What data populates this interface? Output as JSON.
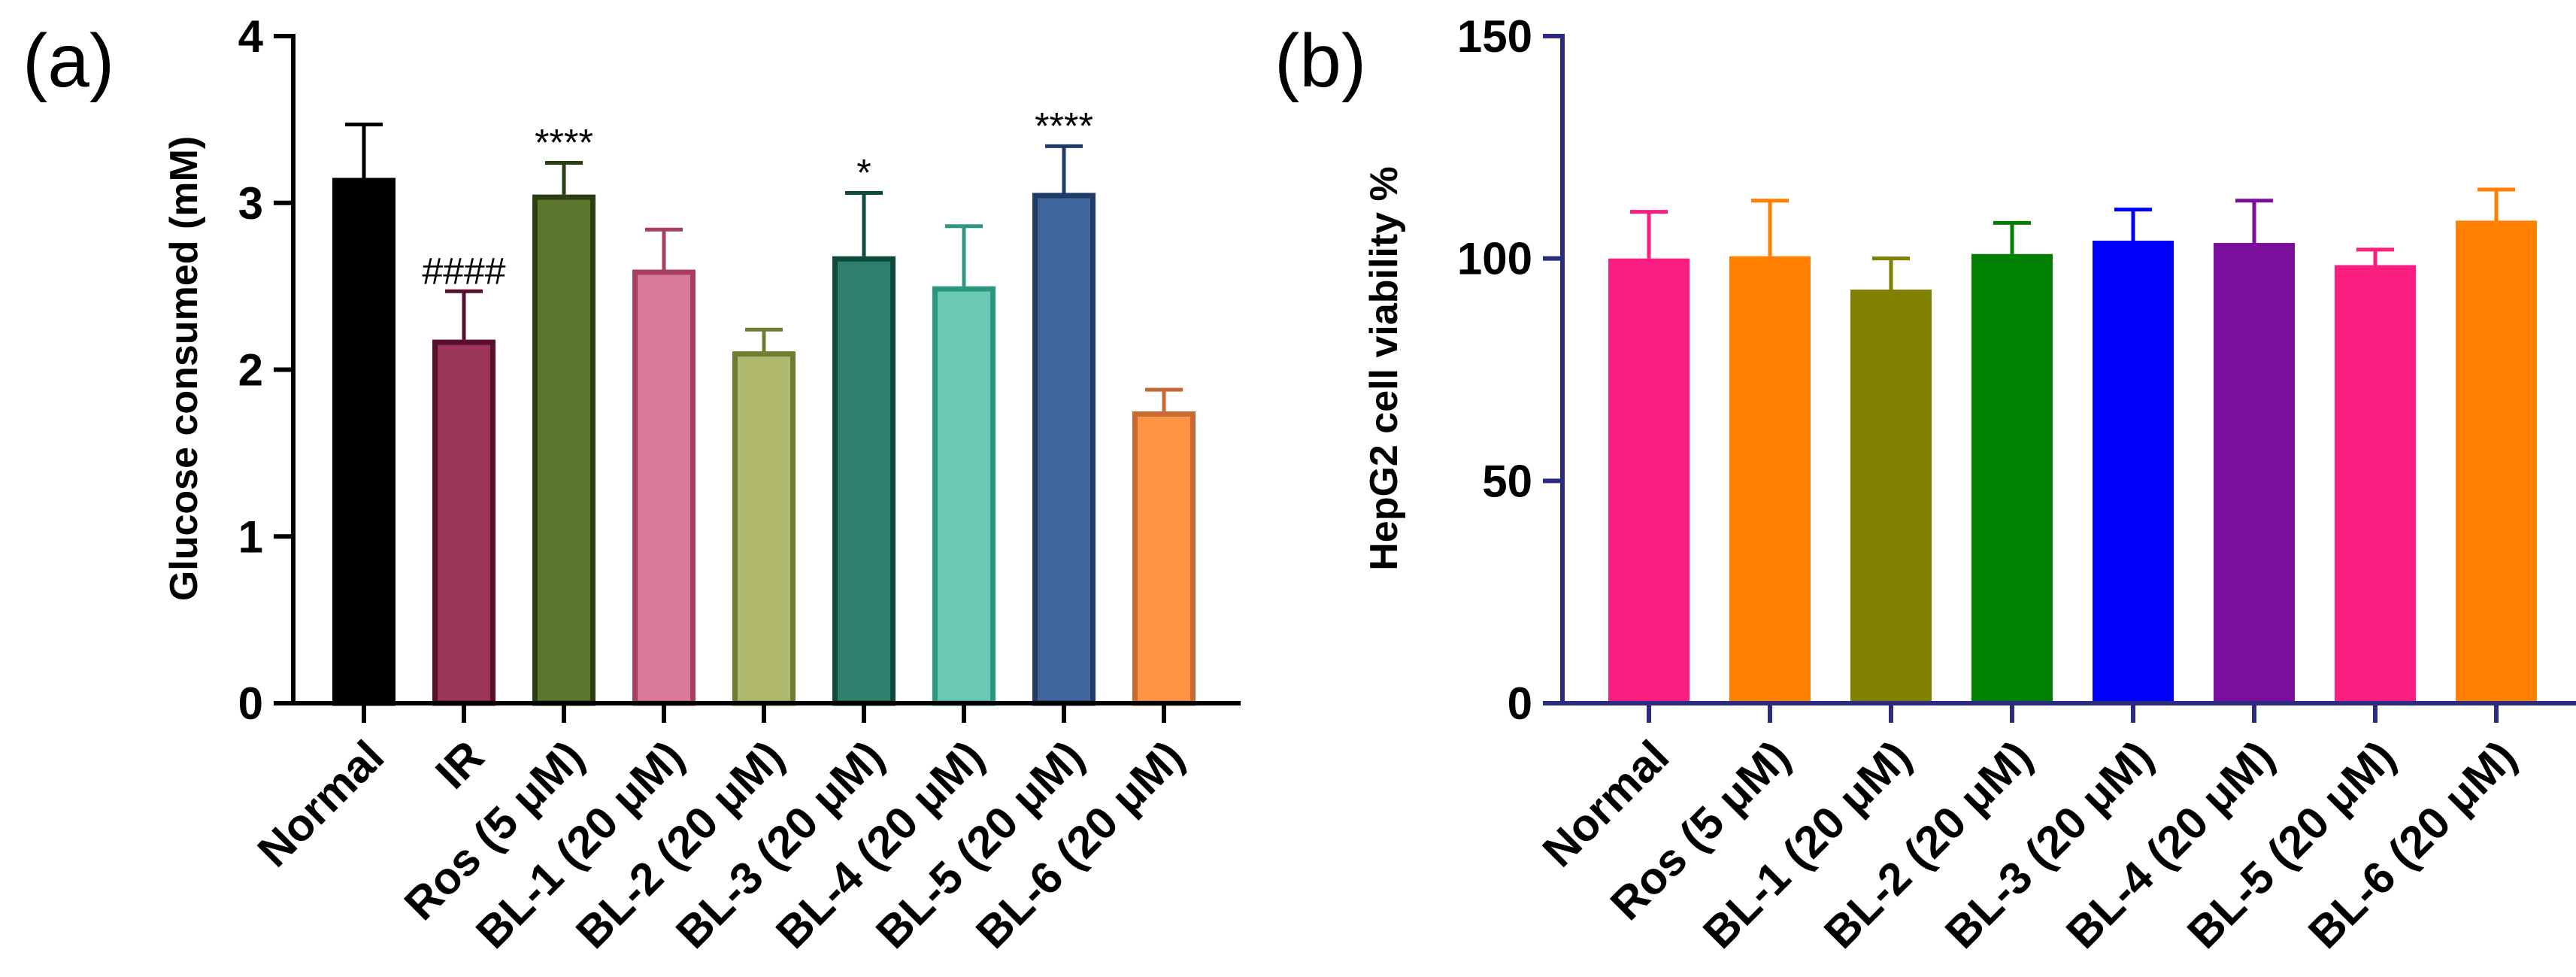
{
  "chart_data": [
    {
      "panel_label": "(a)",
      "type": "bar",
      "ylabel": "Glucose consumed (mM)",
      "ylim": [
        0,
        4
      ],
      "yticks": [
        0,
        1,
        2,
        3,
        4
      ],
      "grid": false,
      "axis_color": "#000000",
      "categories": [
        "Normal",
        "IR",
        "Ros (5 μM)",
        "BL-1 (20 μM)",
        "BL-2 (20 μM)",
        "BL-3 (20 μM)",
        "BL-4 (20 μM)",
        "BL-5 (20 μM)",
        "BL-6 (20 μM)"
      ],
      "values": [
        3.15,
        2.18,
        3.05,
        2.6,
        2.11,
        2.68,
        2.5,
        3.06,
        1.75
      ],
      "errors": [
        0.32,
        0.29,
        0.19,
        0.24,
        0.13,
        0.38,
        0.36,
        0.28,
        0.13
      ],
      "annotations": [
        "",
        "####",
        "****",
        "",
        "",
        "*",
        "",
        "****",
        ""
      ],
      "fill_colors": [
        "#000000",
        "#9c3659",
        "#5d782e",
        "#d97b99",
        "#b0b96d",
        "#2e7f6b",
        "#6bc8b5",
        "#40669e",
        "#ff9443"
      ],
      "edge_colors": [
        "#000000",
        "#5a0e2d",
        "#2a3f12",
        "#a83e63",
        "#6e7d33",
        "#0d4a3d",
        "#2d9680",
        "#213b68",
        "#c86a35"
      ]
    },
    {
      "panel_label": "(b)",
      "type": "bar",
      "ylabel": "HepG2 cell viability %",
      "ylim": [
        0,
        150
      ],
      "yticks": [
        0,
        50,
        100,
        150
      ],
      "grid": false,
      "axis_color": "#2b2b80",
      "categories": [
        "Normal",
        "Ros (5 μM)",
        "BL-1 (20 μM)",
        "BL-2 (20 μM)",
        "BL-3 (20 μM)",
        "BL-4 (20 μM)",
        "BL-5 (20 μM)",
        "BL-6 (20 μM)"
      ],
      "values": [
        100,
        100.5,
        93,
        101,
        104,
        103.5,
        98.5,
        108.5
      ],
      "errors": [
        10.5,
        12.5,
        7,
        7,
        7,
        9.5,
        3.5,
        7
      ],
      "fill_colors": [
        "#fb1d7f",
        "#ff7f00",
        "#7f7f00",
        "#008000",
        "#0000ff",
        "#7b0e9a",
        "#fb1d7f",
        "#ff7f00"
      ]
    }
  ]
}
